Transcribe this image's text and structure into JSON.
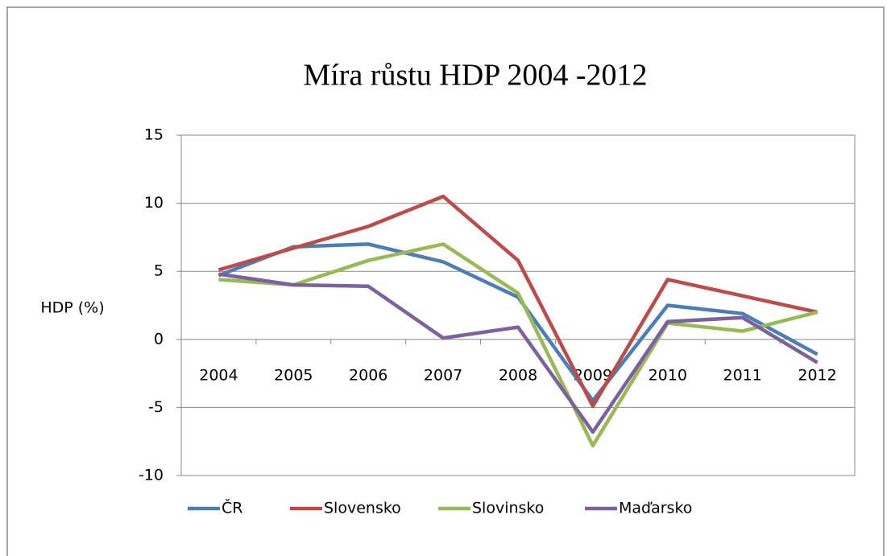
{
  "chart_data": {
    "type": "line",
    "title": "Míra růstu HDP 2004 -2012",
    "y_label": "HDP (%)",
    "categories": [
      "2004",
      "2005",
      "2006",
      "2007",
      "2008",
      "2009",
      "2010",
      "2011",
      "2012"
    ],
    "series": [
      {
        "name": "ČR",
        "color": "#4a7ebb",
        "values": [
          4.7,
          6.8,
          7.0,
          5.7,
          3.1,
          -4.5,
          2.5,
          1.9,
          -1.1
        ]
      },
      {
        "name": "Slovensko",
        "color": "#be4b48",
        "values": [
          5.1,
          6.7,
          8.3,
          10.5,
          5.8,
          -4.9,
          4.4,
          3.2,
          2.0
        ]
      },
      {
        "name": "Slovinsko",
        "color": "#98b954",
        "values": [
          4.4,
          4.0,
          5.8,
          7.0,
          3.4,
          -7.8,
          1.2,
          0.6,
          2.0
        ]
      },
      {
        "name": "Maďarsko",
        "color": "#7d60a0",
        "values": [
          4.8,
          4.0,
          3.9,
          0.1,
          0.9,
          -6.8,
          1.3,
          1.6,
          -1.7
        ]
      }
    ],
    "ylim": [
      -10,
      15
    ],
    "yticks": [
      -10,
      -5,
      0,
      5,
      10,
      15
    ],
    "grid": true,
    "legend": "bottom"
  }
}
